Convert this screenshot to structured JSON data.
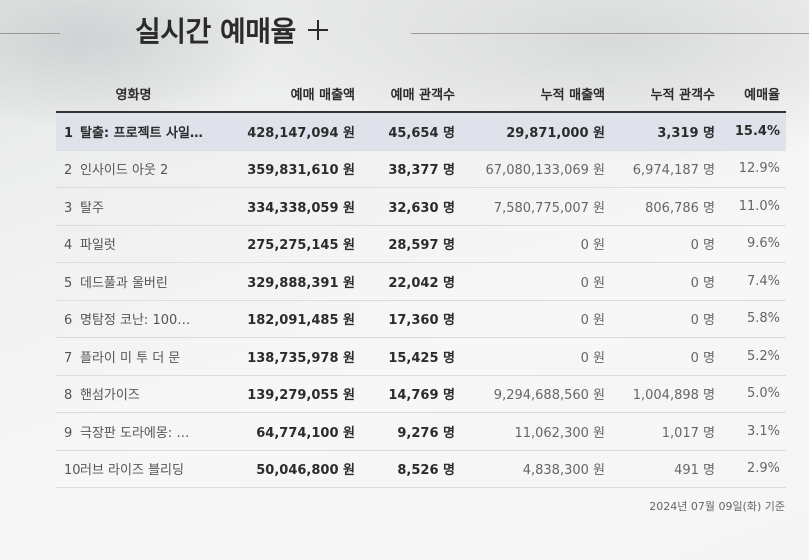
{
  "header": {
    "title": "실시간 예매율"
  },
  "table": {
    "columns": [
      "영화명",
      "예매 매출액",
      "예매 관객수",
      "누적 매출액",
      "누적 관객수",
      "예매율"
    ],
    "rows": [
      {
        "rank": "1",
        "title": "탈출: 프로젝트 사일…",
        "sales": "428,147,094 원",
        "audience": "45,654 명",
        "acc_sales": "29,871,000 원",
        "acc_audience": "3,319 명",
        "rate": "15.4%"
      },
      {
        "rank": "2",
        "title": "인사이드 아웃 2",
        "sales": "359,831,610 원",
        "audience": "38,377 명",
        "acc_sales": "67,080,133,069 원",
        "acc_audience": "6,974,187 명",
        "rate": "12.9%"
      },
      {
        "rank": "3",
        "title": "탈주",
        "sales": "334,338,059 원",
        "audience": "32,630 명",
        "acc_sales": "7,580,775,007 원",
        "acc_audience": "806,786 명",
        "rate": "11.0%"
      },
      {
        "rank": "4",
        "title": "파일럿",
        "sales": "275,275,145 원",
        "audience": "28,597 명",
        "acc_sales": "0 원",
        "acc_audience": "0 명",
        "rate": "9.6%"
      },
      {
        "rank": "5",
        "title": "데드풀과 울버린",
        "sales": "329,888,391 원",
        "audience": "22,042 명",
        "acc_sales": "0 원",
        "acc_audience": "0 명",
        "rate": "7.4%"
      },
      {
        "rank": "6",
        "title": "명탐정 코난: 100…",
        "sales": "182,091,485 원",
        "audience": "17,360 명",
        "acc_sales": "0 원",
        "acc_audience": "0 명",
        "rate": "5.8%"
      },
      {
        "rank": "7",
        "title": "플라이 미 투 더 문",
        "sales": "138,735,978 원",
        "audience": "15,425 명",
        "acc_sales": "0 원",
        "acc_audience": "0 명",
        "rate": "5.2%"
      },
      {
        "rank": "8",
        "title": "핸섬가이즈",
        "sales": "139,279,055 원",
        "audience": "14,769 명",
        "acc_sales": "9,294,688,560 원",
        "acc_audience": "1,004,898 명",
        "rate": "5.0%"
      },
      {
        "rank": "9",
        "title": "극장판 도라에몽: …",
        "sales": "64,774,100 원",
        "audience": "9,276 명",
        "acc_sales": "11,062,300 원",
        "acc_audience": "1,017 명",
        "rate": "3.1%"
      },
      {
        "rank": "10",
        "title": "러브 라이즈 블리딩",
        "sales": "50,046,800 원",
        "audience": "8,526 명",
        "acc_sales": "4,838,300 원",
        "acc_audience": "491 명",
        "rate": "2.9%"
      }
    ]
  },
  "footnote": "2024년 07월 09일(화) 기준",
  "icons": {
    "add": "plus-icon"
  },
  "colors": {
    "highlight_row": "#dfe2ea",
    "text_dark": "#2b2b2b",
    "text_muted": "#555555"
  }
}
